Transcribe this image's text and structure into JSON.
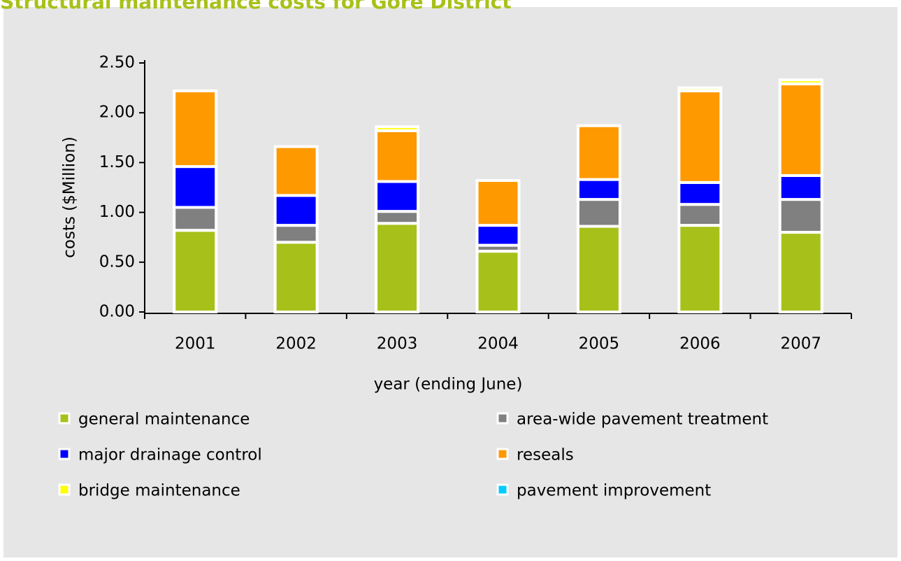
{
  "chart_data": {
    "type": "stacked_bar",
    "title": "Structural maintenance costs for Gore District",
    "x_label": "year (ending June)",
    "y_label": "costs ($Million)",
    "categories": [
      "2001",
      "2002",
      "2003",
      "2004",
      "2005",
      "2006",
      "2007"
    ],
    "series": [
      {
        "name": "general maintenance",
        "color": "#a8c11a",
        "values": [
          0.82,
          0.7,
          0.89,
          0.61,
          0.86,
          0.87,
          0.8
        ]
      },
      {
        "name": "area-wide pavement treatment",
        "color": "#808080",
        "values": [
          0.23,
          0.17,
          0.12,
          0.06,
          0.27,
          0.21,
          0.33
        ]
      },
      {
        "name": "major drainage control",
        "color": "#0000ff",
        "values": [
          0.41,
          0.3,
          0.3,
          0.2,
          0.2,
          0.22,
          0.24
        ]
      },
      {
        "name": "reseals",
        "color": "#ff9900",
        "values": [
          0.76,
          0.49,
          0.51,
          0.45,
          0.54,
          0.92,
          0.92
        ]
      },
      {
        "name": "bridge maintenance",
        "color": "#ffff00",
        "values": [
          0,
          0,
          0.04,
          0,
          0,
          0.03,
          0.04
        ]
      },
      {
        "name": "pavement improvement",
        "color": "#00ccff",
        "values": [
          0,
          0,
          0,
          0,
          0,
          0,
          0
        ]
      }
    ],
    "ylim": [
      0,
      2.5
    ],
    "yticks": [
      {
        "value": 0,
        "label": "0.00"
      },
      {
        "value": 0.5,
        "label": "0.50"
      },
      {
        "value": 1,
        "label": "1.00"
      },
      {
        "value": 1.5,
        "label": "1.50"
      },
      {
        "value": 2,
        "label": "2.00"
      },
      {
        "value": 2.5,
        "label": "2.50"
      }
    ]
  }
}
